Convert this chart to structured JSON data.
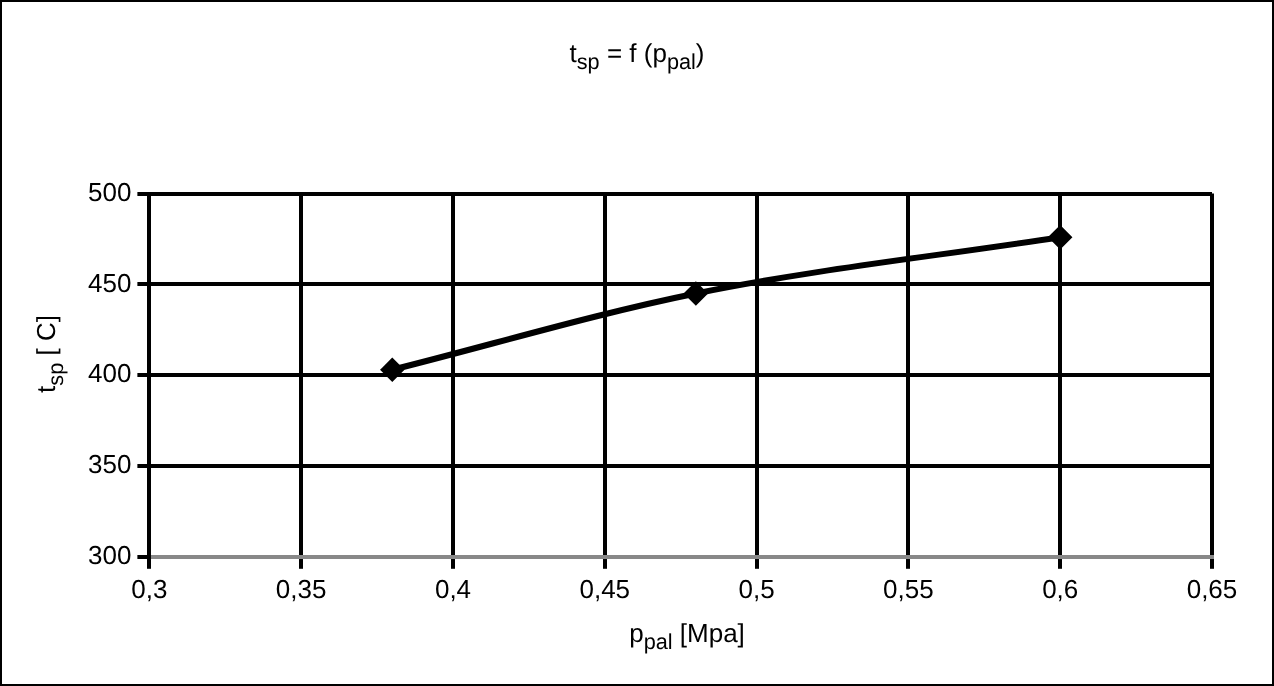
{
  "chart_data": {
    "type": "line",
    "title": "t$_{sp}$ = f (p$_{pal}$)",
    "xlabel": "p$_{pal}$ [Mpa]",
    "ylabel": "t$_{sp}$ [ C]",
    "x": [
      0.38,
      0.48,
      0.6
    ],
    "series": [
      {
        "color": "#000000",
        "values": [
          403,
          445,
          476
        ]
      }
    ],
    "xlim": [
      0.3,
      0.65
    ],
    "xticks": [
      {
        "value": 0.3,
        "label": "0,3"
      },
      {
        "value": 0.35,
        "label": "0,35"
      },
      {
        "value": 0.4,
        "label": "0,4"
      },
      {
        "value": 0.45,
        "label": "0,45"
      },
      {
        "value": 0.5,
        "label": "0,5"
      },
      {
        "value": 0.55,
        "label": "0,55"
      },
      {
        "value": 0.6,
        "label": "0,6"
      },
      {
        "value": 0.65,
        "label": "0,65"
      }
    ],
    "ylim": [
      300,
      500
    ],
    "yticks": [
      300,
      350,
      400,
      450,
      500
    ],
    "grid": true,
    "legend": false,
    "marker": "diamond",
    "line_style": "solid"
  }
}
